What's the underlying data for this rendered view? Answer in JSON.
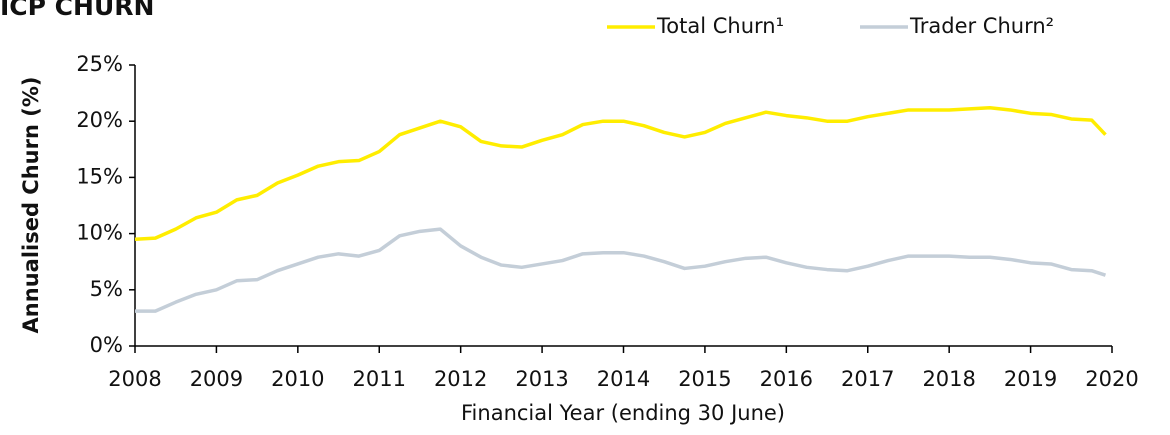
{
  "chart_data": {
    "type": "line",
    "title": "ICP CHURN",
    "xlabel": "Financial Year (ending 30 June)",
    "ylabel": "Annualised Churn (%)",
    "x": [
      2008,
      2008.25,
      2008.5,
      2008.75,
      2009,
      2009.25,
      2009.5,
      2009.75,
      2010,
      2010.25,
      2010.5,
      2010.75,
      2011,
      2011.25,
      2011.5,
      2011.75,
      2012,
      2012.25,
      2012.5,
      2012.75,
      2013,
      2013.25,
      2013.5,
      2013.75,
      2014,
      2014.25,
      2014.5,
      2014.75,
      2015,
      2015.25,
      2015.5,
      2015.75,
      2016,
      2016.25,
      2016.5,
      2016.75,
      2017,
      2017.25,
      2017.5,
      2017.75,
      2018,
      2018.25,
      2018.5,
      2018.75,
      2019,
      2019.25,
      2019.5,
      2019.75,
      2019.92
    ],
    "series": [
      {
        "name": "Total Churn¹",
        "color": "#ffed00",
        "values": [
          9.5,
          9.6,
          10.4,
          11.4,
          11.9,
          13.0,
          13.4,
          14.5,
          15.2,
          16.0,
          16.4,
          16.5,
          17.3,
          18.8,
          19.4,
          20.0,
          19.5,
          18.2,
          17.8,
          17.7,
          18.3,
          18.8,
          19.7,
          20.0,
          20.0,
          19.6,
          19.0,
          18.6,
          19.0,
          19.8,
          20.3,
          20.8,
          20.5,
          20.3,
          20.0,
          20.0,
          20.4,
          20.7,
          21.0,
          21.0,
          21.0,
          21.1,
          21.2,
          21.0,
          20.7,
          20.6,
          20.2,
          20.1,
          18.8
        ]
      },
      {
        "name": "Trader Churn²",
        "color": "#c4ced8",
        "values": [
          3.1,
          3.1,
          3.9,
          4.6,
          5.0,
          5.8,
          5.9,
          6.7,
          7.3,
          7.9,
          8.2,
          8.0,
          8.5,
          9.8,
          10.2,
          10.4,
          8.9,
          7.9,
          7.2,
          7.0,
          7.3,
          7.6,
          8.2,
          8.3,
          8.3,
          8.0,
          7.5,
          6.9,
          7.1,
          7.5,
          7.8,
          7.9,
          7.4,
          7.0,
          6.8,
          6.7,
          7.1,
          7.6,
          8.0,
          8.0,
          8.0,
          7.9,
          7.9,
          7.7,
          7.4,
          7.3,
          6.8,
          6.7,
          6.3
        ]
      }
    ],
    "xlim": [
      2008,
      2020
    ],
    "xticks": [
      2008,
      2009,
      2010,
      2011,
      2012,
      2013,
      2014,
      2015,
      2016,
      2017,
      2018,
      2019,
      2020
    ],
    "ylim": [
      0,
      25
    ],
    "yticks": [
      {
        "value": 0,
        "label": "0%"
      },
      {
        "value": 5,
        "label": "5%"
      },
      {
        "value": 10,
        "label": "10%"
      },
      {
        "value": 15,
        "label": "15%"
      },
      {
        "value": 20,
        "label": "20%"
      },
      {
        "value": 25,
        "label": "25%"
      }
    ],
    "grid": false,
    "legend": "top-right"
  }
}
